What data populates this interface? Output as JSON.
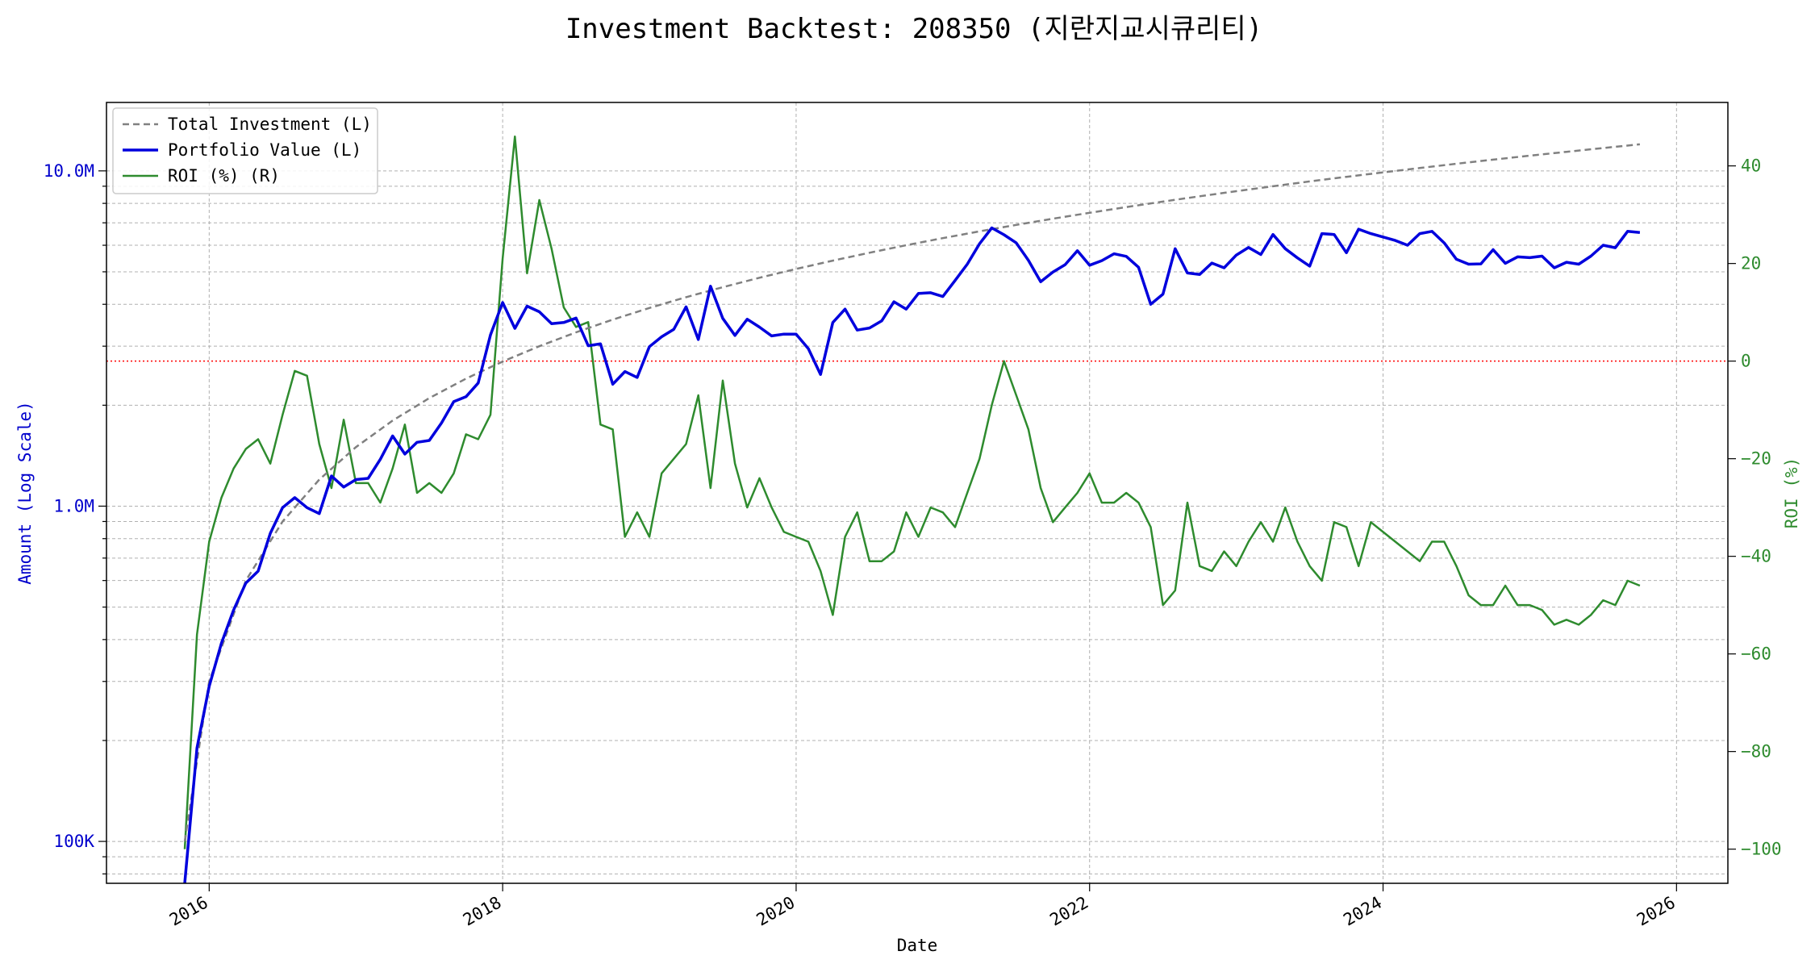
{
  "chart_data": {
    "type": "line",
    "title": "Investment Backtest: 208350 (지란지교시큐리티)",
    "xlabel": "Date",
    "ylabel_left": "Amount (Log Scale)",
    "ylabel_right": "ROI (%)",
    "x_ticks": [
      "2016",
      "2018",
      "2020",
      "2022",
      "2024",
      "2026"
    ],
    "x_range": [
      2015.3,
      2026.35
    ],
    "left_axis": {
      "scale": "log",
      "ylim": [
        75000,
        16000000
      ],
      "ticks": [
        100000,
        1000000,
        10000000
      ],
      "tick_labels": [
        "100K",
        "1.0M",
        "10.0M"
      ]
    },
    "right_axis": {
      "scale": "linear",
      "ylim": [
        -107,
        53
      ],
      "ticks": [
        -100,
        -80,
        -60,
        -40,
        -20,
        0,
        20,
        40
      ],
      "tick_labels": [
        "−100",
        "−80",
        "−60",
        "−40",
        "−20",
        "0",
        "20",
        "40"
      ]
    },
    "zero_line": {
      "value": 0,
      "axis": "right",
      "color": "#ff0000"
    },
    "legend": {
      "position": "top-left",
      "entries": [
        "Total Investment (L)",
        "Portfolio Value (L)",
        "ROI (%) (R)"
      ]
    },
    "grid": true,
    "series": [
      {
        "name": "Total Investment (L)",
        "axis": "left",
        "style": "dashed",
        "color": "#808080",
        "x": [
          "2015-11",
          "2016-01",
          "2016-04",
          "2016-07",
          "2016-10",
          "2017-01",
          "2017-04",
          "2017-07",
          "2017-10",
          "2018-01",
          "2018-04",
          "2018-07",
          "2018-10",
          "2019-01",
          "2019-04",
          "2019-07",
          "2019-10",
          "2020-01",
          "2020-04",
          "2020-07",
          "2020-10",
          "2021-01",
          "2021-04",
          "2021-07",
          "2021-10",
          "2022-01",
          "2022-04",
          "2022-07",
          "2022-10",
          "2023-01",
          "2023-04",
          "2023-07",
          "2023-10",
          "2024-01",
          "2024-04",
          "2024-07",
          "2024-10",
          "2025-01",
          "2025-04",
          "2025-07",
          "2025-10"
        ],
        "values": [
          100000,
          300000,
          600000,
          900000,
          1200000,
          1500000,
          1800000,
          2100000,
          2400000,
          2700000,
          3000000,
          3300000,
          3600000,
          3900000,
          4200000,
          4500000,
          4800000,
          5100000,
          5400000,
          5700000,
          6000000,
          6300000,
          6600000,
          6900000,
          7200000,
          7500000,
          7800000,
          8100000,
          8400000,
          8700000,
          9000000,
          9300000,
          9600000,
          9900000,
          10200000,
          10500000,
          10800000,
          11100000,
          11400000,
          11700000,
          12000000
        ]
      },
      {
        "name": "Portfolio Value (L)",
        "axis": "left",
        "style": "solid",
        "color": "#0000dd",
        "x": [
          "2015-11",
          "2015-12",
          "2016-01",
          "2016-02",
          "2016-03",
          "2016-04",
          "2016-05",
          "2016-06",
          "2016-07",
          "2016-08",
          "2016-09",
          "2016-10",
          "2016-11",
          "2016-12",
          "2017-01",
          "2017-02",
          "2017-03",
          "2017-04",
          "2017-05",
          "2017-06",
          "2017-07",
          "2017-08",
          "2017-09",
          "2017-10",
          "2017-11",
          "2017-12",
          "2018-01",
          "2018-02",
          "2018-03",
          "2018-04",
          "2018-05",
          "2018-06",
          "2018-07",
          "2018-08",
          "2018-09",
          "2018-10",
          "2018-11",
          "2018-12",
          "2019-01",
          "2019-02",
          "2019-03",
          "2019-04",
          "2019-05",
          "2019-06",
          "2019-07",
          "2019-08",
          "2019-09",
          "2019-10",
          "2019-11",
          "2019-12",
          "2020-01",
          "2020-02",
          "2020-03",
          "2020-04",
          "2020-05",
          "2020-06",
          "2020-07",
          "2020-08",
          "2020-09",
          "2020-10",
          "2020-11",
          "2020-12",
          "2021-01",
          "2021-02",
          "2021-03",
          "2021-04",
          "2021-05",
          "2021-06",
          "2021-07",
          "2021-08",
          "2021-09",
          "2021-10",
          "2021-11",
          "2021-12",
          "2022-01",
          "2022-02",
          "2022-03",
          "2022-04",
          "2022-05",
          "2022-06",
          "2022-07",
          "2022-08",
          "2022-09",
          "2022-10",
          "2022-11",
          "2022-12",
          "2023-01",
          "2023-02",
          "2023-03",
          "2023-04",
          "2023-05",
          "2023-06",
          "2023-07",
          "2023-08",
          "2023-09",
          "2023-10",
          "2023-11",
          "2023-12",
          "2024-01",
          "2024-02",
          "2024-03",
          "2024-04",
          "2024-05",
          "2024-06",
          "2024-07",
          "2024-08",
          "2024-09",
          "2024-10",
          "2024-11",
          "2024-12",
          "2025-01",
          "2025-02",
          "2025-03",
          "2025-04",
          "2025-05",
          "2025-06",
          "2025-07",
          "2025-08",
          "2025-09",
          "2025-10"
        ],
        "values": [
          70000,
          190000,
          290000,
          390000,
          490000,
          590000,
          640000,
          830000,
          990000,
          1060000,
          990000,
          950000,
          1230000,
          1140000,
          1200000,
          1210000,
          1380000,
          1620000,
          1430000,
          1550000,
          1570000,
          1770000,
          2050000,
          2120000,
          2330000,
          3240000,
          4050000,
          3390000,
          3950000,
          3800000,
          3500000,
          3530000,
          3640000,
          3010000,
          3050000,
          2310000,
          2520000,
          2420000,
          2990000,
          3200000,
          3370000,
          3930000,
          3140000,
          4530000,
          3630000,
          3230000,
          3610000,
          3420000,
          3220000,
          3260000,
          3260000,
          2950000,
          2470000,
          3530000,
          3870000,
          3350000,
          3400000,
          3570000,
          4070000,
          3870000,
          4310000,
          4330000,
          4220000,
          4710000,
          5270000,
          6060000,
          6760000,
          6450000,
          6100000,
          5410000,
          4670000,
          4990000,
          5250000,
          5780000,
          5230000,
          5400000,
          5660000,
          5560000,
          5160000,
          4000000,
          4290000,
          5860000,
          4960000,
          4910000,
          5310000,
          5140000,
          5610000,
          5910000,
          5630000,
          6460000,
          5860000,
          5500000,
          5200000,
          6500000,
          6460000,
          5700000,
          6700000,
          6500000,
          6350000,
          6200000,
          6000000,
          6500000,
          6600000,
          6100000,
          5450000,
          5270000,
          5280000,
          5820000,
          5300000,
          5540000,
          5510000,
          5570000,
          5140000,
          5340000,
          5270000,
          5570000,
          6000000,
          5900000,
          6600000,
          6550000
        ]
      },
      {
        "name": "ROI (%) (R)",
        "axis": "right",
        "style": "solid",
        "color": "#2e8b2e",
        "x": [
          "2015-11",
          "2015-12",
          "2016-01",
          "2016-02",
          "2016-03",
          "2016-04",
          "2016-05",
          "2016-06",
          "2016-07",
          "2016-08",
          "2016-09",
          "2016-10",
          "2016-11",
          "2016-12",
          "2017-01",
          "2017-02",
          "2017-03",
          "2017-04",
          "2017-05",
          "2017-06",
          "2017-07",
          "2017-08",
          "2017-09",
          "2017-10",
          "2017-11",
          "2017-12",
          "2018-01",
          "2018-02",
          "2018-03",
          "2018-04",
          "2018-05",
          "2018-06",
          "2018-07",
          "2018-08",
          "2018-09",
          "2018-10",
          "2018-11",
          "2018-12",
          "2019-01",
          "2019-02",
          "2019-03",
          "2019-04",
          "2019-05",
          "2019-06",
          "2019-07",
          "2019-08",
          "2019-09",
          "2019-10",
          "2019-11",
          "2019-12",
          "2020-01",
          "2020-02",
          "2020-03",
          "2020-04",
          "2020-05",
          "2020-06",
          "2020-07",
          "2020-08",
          "2020-09",
          "2020-10",
          "2020-11",
          "2020-12",
          "2021-01",
          "2021-02",
          "2021-03",
          "2021-04",
          "2021-05",
          "2021-06",
          "2021-07",
          "2021-08",
          "2021-09",
          "2021-10",
          "2021-11",
          "2021-12",
          "2022-01",
          "2022-02",
          "2022-03",
          "2022-04",
          "2022-05",
          "2022-06",
          "2022-07",
          "2022-08",
          "2022-09",
          "2022-10",
          "2022-11",
          "2022-12",
          "2023-01",
          "2023-02",
          "2023-03",
          "2023-04",
          "2023-05",
          "2023-06",
          "2023-07",
          "2023-08",
          "2023-09",
          "2023-10",
          "2023-11",
          "2023-12",
          "2024-01",
          "2024-02",
          "2024-03",
          "2024-04",
          "2024-05",
          "2024-06",
          "2024-07",
          "2024-08",
          "2024-09",
          "2024-10",
          "2024-11",
          "2024-12",
          "2025-01",
          "2025-02",
          "2025-03",
          "2025-04",
          "2025-05",
          "2025-06",
          "2025-07",
          "2025-08",
          "2025-09",
          "2025-10"
        ],
        "values": [
          -100,
          -56,
          -37,
          -28,
          -22,
          -18,
          -16,
          -21,
          -11,
          -2,
          -3,
          -17,
          -26,
          -12,
          -25,
          -25,
          -29,
          -22,
          -13,
          -27,
          -25,
          -27,
          -23,
          -15,
          -16,
          -11,
          21,
          46,
          18,
          33,
          23,
          11,
          7,
          8,
          -13,
          -14,
          -36,
          -31,
          -36,
          -23,
          -20,
          -17,
          -7,
          -26,
          -4,
          -21,
          -30,
          -24,
          -30,
          -35,
          -36,
          -37,
          -43,
          -52,
          -36,
          -31,
          -41,
          -41,
          -39,
          -31,
          -36,
          -30,
          -31,
          -34,
          -27,
          -20,
          -9,
          0,
          -7,
          -14,
          -26,
          -33,
          -30,
          -27,
          -23,
          -29,
          -29,
          -27,
          -29,
          -34,
          -50,
          -47,
          -29,
          -42,
          -43,
          -39,
          -42,
          -37,
          -33,
          -37,
          -30,
          -37,
          -42,
          -45,
          -33,
          -34,
          -42,
          -33,
          -35,
          -37,
          -39,
          -41,
          -37,
          -37,
          -42,
          -48,
          -50,
          -50,
          -46,
          -50,
          -50,
          -51,
          -54,
          -53,
          -54,
          -52,
          -49,
          -50,
          -45,
          -46
        ]
      }
    ]
  }
}
